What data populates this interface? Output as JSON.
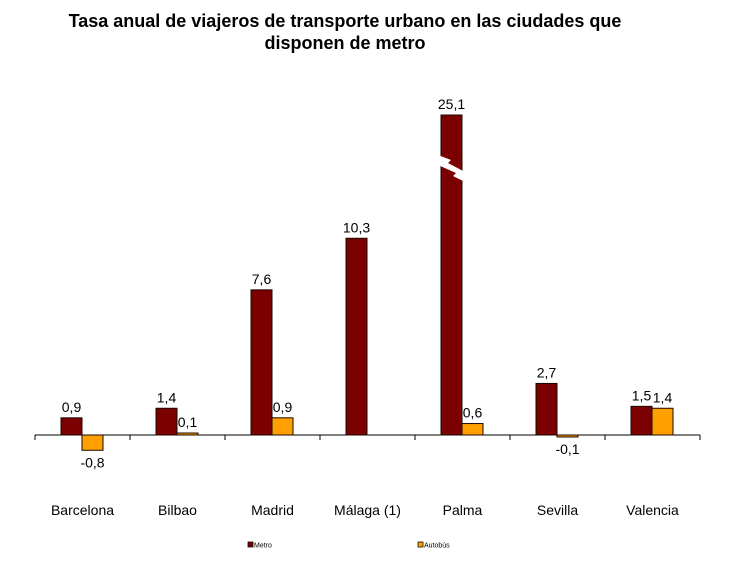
{
  "chart_data": {
    "type": "bar",
    "title": "Tasa anual de viajeros de transporte urbano en las ciudades que disponen de metro",
    "title_lines": [
      "Tasa anual de viajeros de transporte urbano en las ciudades que",
      "disponen de metro"
    ],
    "xlabel": "",
    "ylabel": "",
    "categories": [
      "Barcelona",
      "Bilbao",
      "Madrid",
      "Málaga (1)",
      "Palma",
      "Sevilla",
      "Valencia"
    ],
    "series": [
      {
        "name": "Metro",
        "color": "#7b0000",
        "values": [
          0.9,
          1.4,
          7.6,
          10.3,
          25.1,
          2.7,
          1.5
        ],
        "labels": [
          "0,9",
          "1,4",
          "7,6",
          "10,3",
          "25,1",
          "2,7",
          "1,5"
        ]
      },
      {
        "name": "Autobús",
        "color": "#ff9f00",
        "values": [
          -0.8,
          0.1,
          0.9,
          null,
          0.6,
          -0.1,
          1.4
        ],
        "labels": [
          "-0,8",
          "0,1",
          "0,9",
          "",
          "0,6",
          "-0,1",
          "1,4"
        ]
      }
    ],
    "axis_break": {
      "category": "Palma",
      "series": "Metro"
    },
    "grid": false,
    "legend_position": "bottom"
  }
}
